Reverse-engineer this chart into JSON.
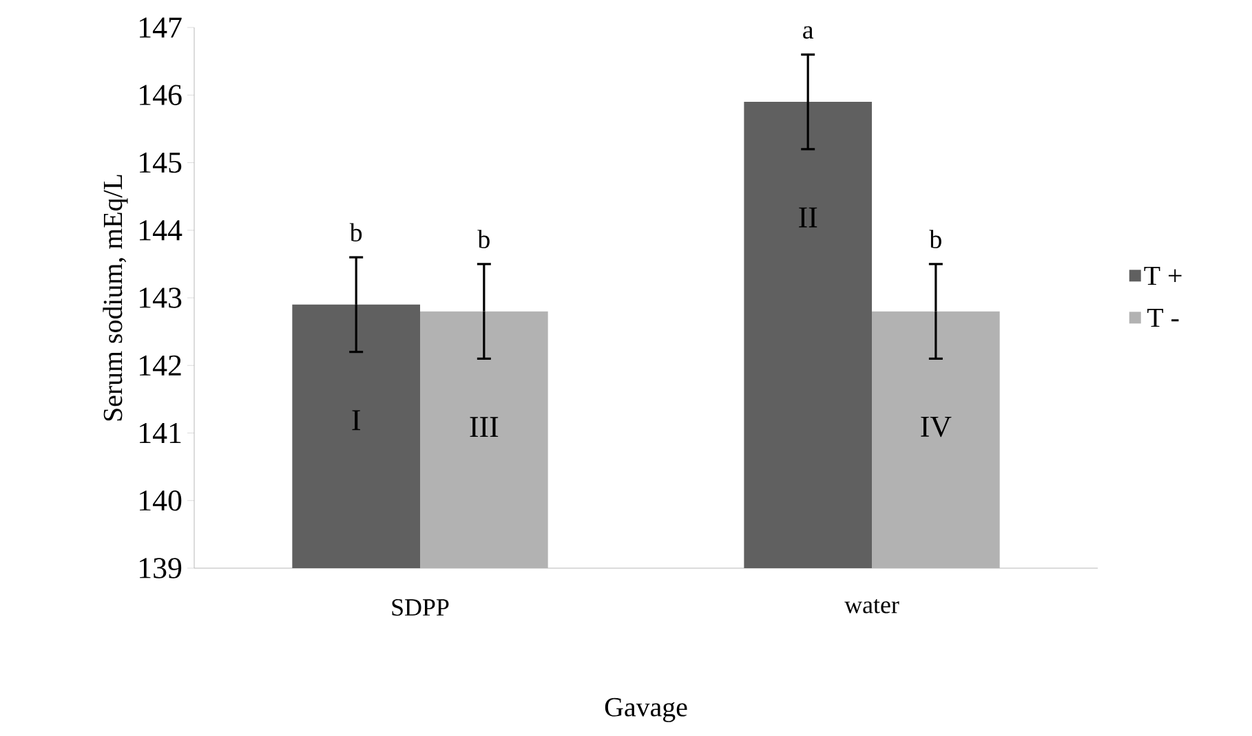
{
  "chart_data": {
    "type": "bar",
    "xlabel": "Gavage",
    "ylabel": "Serum sodium, mEq/L",
    "categories": [
      "SDPP",
      "water"
    ],
    "series": [
      {
        "name": "T +",
        "color": "#606060",
        "values": [
          142.9,
          145.9
        ],
        "errors": [
          0.7,
          0.7
        ]
      },
      {
        "name": "T -",
        "color": "#b2b2b2",
        "values": [
          142.8,
          142.8
        ],
        "errors": [
          0.7,
          0.7
        ]
      }
    ],
    "ylim": [
      139,
      147
    ],
    "yticks": [
      139,
      140,
      141,
      142,
      143,
      144,
      145,
      146,
      147
    ],
    "legend": "right",
    "annotations": [
      "b",
      "b",
      "a",
      "b",
      "I",
      "III",
      "II",
      "IV"
    ]
  }
}
